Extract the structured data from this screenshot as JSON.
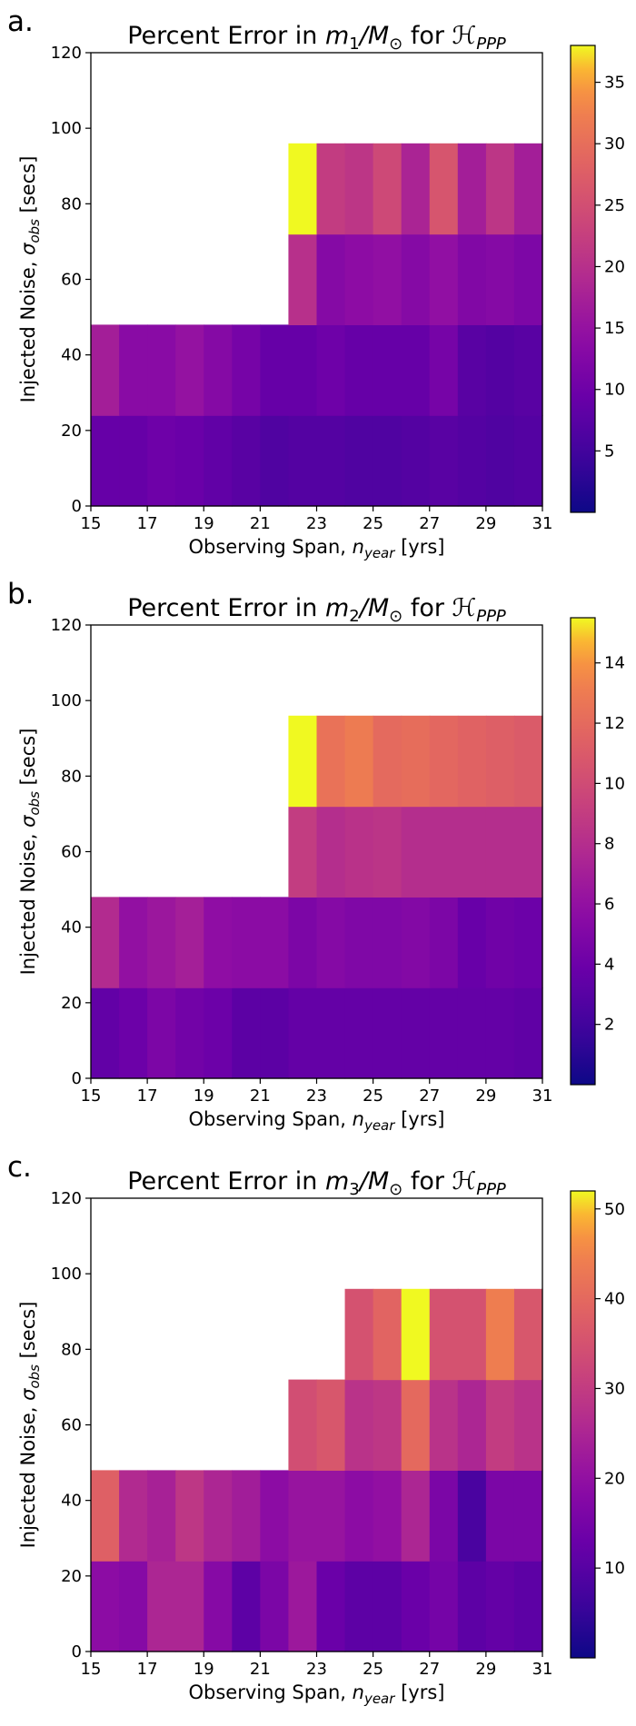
{
  "chart_data": [
    {
      "type": "heatmap",
      "panel_label": "a.",
      "title": {
        "pre": "Percent Error in ",
        "var": "m",
        "sub": "1",
        "mid": "/M",
        "sun": "⊙",
        "post": " for ",
        "ham": "ℋ",
        "hsub": "PPP"
      },
      "xlabel": {
        "pre": "Observing Span, ",
        "var": "n",
        "sub": "year",
        "post": " [yrs]"
      },
      "ylabel": {
        "pre": "Injected Noise, ",
        "var": "σ",
        "sub": "obs",
        "post": " [secs]"
      },
      "xlim": [
        15,
        31
      ],
      "ylim": [
        0,
        120
      ],
      "xticks": [
        15,
        17,
        19,
        21,
        23,
        25,
        27,
        29,
        31
      ],
      "yticks": [
        0,
        20,
        40,
        60,
        80,
        100,
        120
      ],
      "x_edges": [
        15,
        16,
        17,
        18,
        19,
        20,
        21,
        22,
        23,
        24,
        25,
        26,
        27,
        28,
        29,
        30,
        31
      ],
      "y_edges": [
        0,
        24,
        48,
        72,
        96
      ],
      "colormap": "plasma",
      "clim": [
        0,
        38
      ],
      "colorbar_ticks": [
        5,
        10,
        15,
        20,
        25,
        30,
        35
      ],
      "z": [
        [
          9,
          9,
          10,
          9.5,
          8.5,
          7.5,
          6.5,
          7,
          7,
          6.5,
          6.5,
          7,
          7.5,
          7,
          6.5,
          7
        ],
        [
          17,
          13.5,
          13.5,
          15,
          13,
          11,
          9,
          9,
          10,
          9,
          9,
          9,
          11,
          7.5,
          7,
          7.5
        ],
        [
          null,
          null,
          null,
          null,
          null,
          null,
          null,
          20,
          13,
          14,
          14.5,
          13,
          14.5,
          12.5,
          13,
          12
        ],
        [
          null,
          null,
          null,
          null,
          null,
          null,
          null,
          38,
          22,
          21,
          24,
          18,
          26,
          17,
          21,
          17
        ]
      ]
    },
    {
      "type": "heatmap",
      "panel_label": "b.",
      "title": {
        "pre": "Percent Error in ",
        "var": "m",
        "sub": "2",
        "mid": "/M",
        "sun": "⊙",
        "post": " for ",
        "ham": "ℋ",
        "hsub": "PPP"
      },
      "xlabel": {
        "pre": "Observing Span, ",
        "var": "n",
        "sub": "year",
        "post": " [yrs]"
      },
      "ylabel": {
        "pre": "Injected Noise, ",
        "var": "σ",
        "sub": "obs",
        "post": " [secs]"
      },
      "xlim": [
        15,
        31
      ],
      "ylim": [
        0,
        120
      ],
      "xticks": [
        15,
        17,
        19,
        21,
        23,
        25,
        27,
        29,
        31
      ],
      "yticks": [
        0,
        20,
        40,
        60,
        80,
        100,
        120
      ],
      "x_edges": [
        15,
        16,
        17,
        18,
        19,
        20,
        21,
        22,
        23,
        24,
        25,
        26,
        27,
        28,
        29,
        30,
        31
      ],
      "y_edges": [
        0,
        24,
        48,
        72,
        96
      ],
      "colormap": "plasma",
      "clim": [
        0,
        15.5
      ],
      "colorbar_ticks": [
        2,
        4,
        6,
        8,
        10,
        12,
        14
      ],
      "z": [
        [
          3.5,
          4,
          4.8,
          4.3,
          4,
          3.2,
          3.2,
          3.6,
          3.6,
          3.6,
          3.6,
          3.6,
          3.6,
          3.6,
          3.6,
          3.4
        ],
        [
          7.8,
          6,
          6.5,
          7,
          5.8,
          5.6,
          5.6,
          4.8,
          5.3,
          5,
          5,
          5.2,
          4.8,
          3.8,
          4.2,
          4
        ],
        [
          null,
          null,
          null,
          null,
          null,
          null,
          null,
          9,
          8,
          8.3,
          8.5,
          8,
          8,
          8,
          8,
          8
        ],
        [
          null,
          null,
          null,
          null,
          null,
          null,
          null,
          15.5,
          12.5,
          13,
          12,
          12.2,
          11.8,
          11.5,
          11.3,
          11
        ]
      ]
    },
    {
      "type": "heatmap",
      "panel_label": "c.",
      "title": {
        "pre": "Percent Error in ",
        "var": "m",
        "sub": "3",
        "mid": "/M",
        "sun": "⊙",
        "post": " for ",
        "ham": "ℋ",
        "hsub": "PPP"
      },
      "xlabel": {
        "pre": "Observing Span, ",
        "var": "n",
        "sub": "year",
        "post": " [yrs]"
      },
      "ylabel": {
        "pre": "Injected Noise, ",
        "var": "σ",
        "sub": "obs",
        "post": " [secs]"
      },
      "xlim": [
        15,
        31
      ],
      "ylim": [
        0,
        120
      ],
      "xticks": [
        15,
        17,
        19,
        21,
        23,
        25,
        27,
        29,
        31
      ],
      "yticks": [
        0,
        20,
        40,
        60,
        80,
        100,
        120
      ],
      "x_edges": [
        15,
        16,
        17,
        18,
        19,
        20,
        21,
        22,
        23,
        24,
        25,
        26,
        27,
        28,
        29,
        30,
        31
      ],
      "y_edges": [
        0,
        24,
        48,
        72,
        96
      ],
      "colormap": "plasma",
      "clim": [
        0,
        52
      ],
      "colorbar_ticks": [
        10,
        20,
        30,
        40,
        50
      ],
      "z": [
        [
          19,
          18,
          25,
          25,
          18,
          11,
          16,
          22,
          13,
          11,
          11,
          13,
          15,
          11,
          12,
          11
        ],
        [
          38,
          26,
          24,
          29,
          25,
          23,
          19,
          21,
          21,
          19,
          20,
          25,
          16,
          8,
          16,
          16
        ],
        [
          null,
          null,
          null,
          null,
          null,
          null,
          null,
          34,
          36,
          28,
          29,
          40,
          28,
          25,
          30,
          28
        ],
        [
          null,
          null,
          null,
          null,
          null,
          null,
          null,
          null,
          null,
          35,
          39,
          52,
          35,
          35,
          44,
          36
        ]
      ]
    }
  ]
}
